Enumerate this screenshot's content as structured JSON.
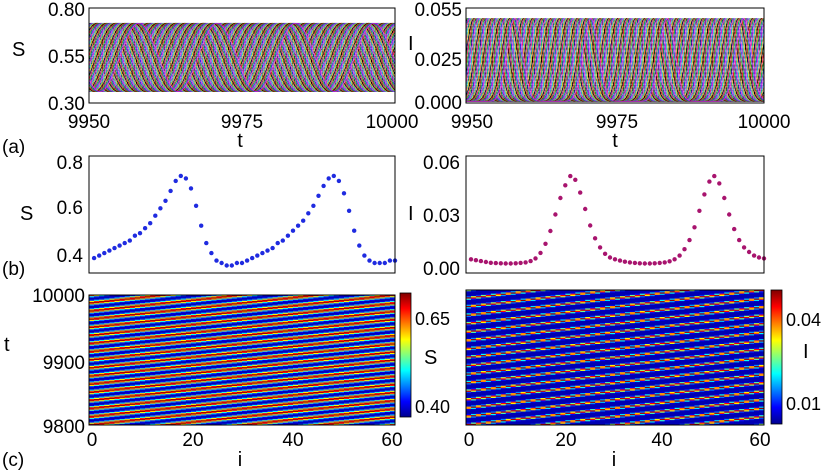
{
  "panel_labels": [
    "(a)",
    "(b)",
    "(c)"
  ],
  "chart_data": [
    {
      "type": "line",
      "panel": "a-left",
      "title": "",
      "xlabel": "t",
      "ylabel": "S",
      "xlim": [
        9950,
        10000
      ],
      "ylim": [
        0.3,
        0.8
      ],
      "xticks": [
        "9950",
        "9975",
        "10000"
      ],
      "yticks": [
        "0.30",
        "0.55",
        "0.80"
      ],
      "series_count": 60,
      "period": 12.8,
      "min": 0.36,
      "max": 0.72,
      "colors": [
        "#e5172b",
        "#17a81f",
        "#2b2bd9",
        "#d41cd4",
        "#19b8c7",
        "#c9b418",
        "#000000"
      ]
    },
    {
      "type": "line",
      "panel": "a-right",
      "title": "",
      "xlabel": "t",
      "ylabel": "I",
      "xlim": [
        9950,
        10000
      ],
      "ylim": [
        0.0,
        0.055
      ],
      "xticks": [
        "9950",
        "9975",
        "10000"
      ],
      "yticks": [
        "0.000",
        "0.025",
        "0.055"
      ],
      "series_count": 60,
      "period": 12.8,
      "min": 0.001,
      "max": 0.049,
      "colors": [
        "#e5172b",
        "#17a81f",
        "#2b2bd9",
        "#d41cd4",
        "#19b8c7",
        "#c9b418",
        "#000000"
      ]
    },
    {
      "type": "scatter",
      "panel": "b-left",
      "xlabel": "",
      "ylabel": "S",
      "xlim": [
        0,
        60
      ],
      "ylim": [
        0.33,
        0.8
      ],
      "yticks": [
        "0.4",
        "0.6",
        "0.8"
      ],
      "color": "#1f2be0",
      "x": [
        1,
        2,
        3,
        4,
        5,
        6,
        7,
        8,
        9,
        10,
        11,
        12,
        13,
        14,
        15,
        16,
        17,
        18,
        19,
        20,
        21,
        22,
        23,
        24,
        25,
        26,
        27,
        28,
        29,
        30,
        31,
        32,
        33,
        34,
        35,
        36,
        37,
        38,
        39,
        40,
        41,
        42,
        43,
        44,
        45,
        46,
        47,
        48,
        49,
        50,
        51,
        52,
        53,
        54,
        55,
        56,
        57,
        58,
        59,
        60
      ],
      "y": [
        0.39,
        0.4,
        0.41,
        0.42,
        0.43,
        0.44,
        0.45,
        0.46,
        0.48,
        0.49,
        0.51,
        0.53,
        0.56,
        0.59,
        0.62,
        0.66,
        0.7,
        0.72,
        0.71,
        0.67,
        0.6,
        0.52,
        0.45,
        0.41,
        0.38,
        0.37,
        0.36,
        0.36,
        0.37,
        0.37,
        0.38,
        0.39,
        0.4,
        0.41,
        0.42,
        0.43,
        0.45,
        0.46,
        0.48,
        0.5,
        0.52,
        0.54,
        0.57,
        0.6,
        0.64,
        0.68,
        0.71,
        0.72,
        0.7,
        0.65,
        0.58,
        0.5,
        0.44,
        0.4,
        0.38,
        0.37,
        0.37,
        0.37,
        0.38,
        0.38
      ]
    },
    {
      "type": "scatter",
      "panel": "b-right",
      "xlabel": "",
      "ylabel": "I",
      "xlim": [
        0,
        60
      ],
      "ylim": [
        -0.004,
        0.06
      ],
      "yticks": [
        "0.00",
        "0.03",
        "0.06"
      ],
      "color": "#a8146e",
      "x": [
        1,
        2,
        3,
        4,
        5,
        6,
        7,
        8,
        9,
        10,
        11,
        12,
        13,
        14,
        15,
        16,
        17,
        18,
        19,
        20,
        21,
        22,
        23,
        24,
        25,
        26,
        27,
        28,
        29,
        30,
        31,
        32,
        33,
        34,
        35,
        36,
        37,
        38,
        39,
        40,
        41,
        42,
        43,
        44,
        45,
        46,
        47,
        48,
        49,
        50,
        51,
        52,
        53,
        54,
        55,
        56,
        57,
        58,
        59,
        60
      ],
      "y": [
        0.0035,
        0.003,
        0.0025,
        0.002,
        0.0016,
        0.0014,
        0.0013,
        0.0012,
        0.0012,
        0.0013,
        0.0015,
        0.0018,
        0.0025,
        0.004,
        0.007,
        0.012,
        0.019,
        0.028,
        0.037,
        0.044,
        0.049,
        0.047,
        0.04,
        0.031,
        0.022,
        0.015,
        0.01,
        0.0065,
        0.0045,
        0.0035,
        0.0028,
        0.0022,
        0.0018,
        0.0015,
        0.0013,
        0.0012,
        0.0012,
        0.0013,
        0.0015,
        0.0018,
        0.0024,
        0.0035,
        0.0055,
        0.009,
        0.014,
        0.021,
        0.03,
        0.039,
        0.046,
        0.049,
        0.045,
        0.037,
        0.028,
        0.02,
        0.014,
        0.01,
        0.0075,
        0.0055,
        0.0045,
        0.004
      ]
    },
    {
      "type": "heatmap",
      "panel": "c-left",
      "xlabel": "i",
      "ylabel": "t",
      "xlim": [
        0,
        60
      ],
      "ylim": [
        9800,
        10000
      ],
      "xticks": [
        "0",
        "20",
        "40",
        "60"
      ],
      "yticks": [
        "9800",
        "9900",
        "10000"
      ],
      "colorbar_label": "S",
      "colorbar_ticks": [
        "0.40",
        "0.65"
      ],
      "value_range": [
        0.36,
        0.72
      ],
      "stripes": 16
    },
    {
      "type": "heatmap",
      "panel": "c-right",
      "xlabel": "i",
      "ylabel": "",
      "xlim": [
        0,
        60
      ],
      "ylim": [
        9800,
        10000
      ],
      "xticks": [
        "0",
        "20",
        "40",
        "60"
      ],
      "yticks": [],
      "colorbar_label": "I",
      "colorbar_ticks": [
        "0.01",
        "0.04"
      ],
      "value_range": [
        0.001,
        0.049
      ],
      "stripes": 16
    }
  ]
}
